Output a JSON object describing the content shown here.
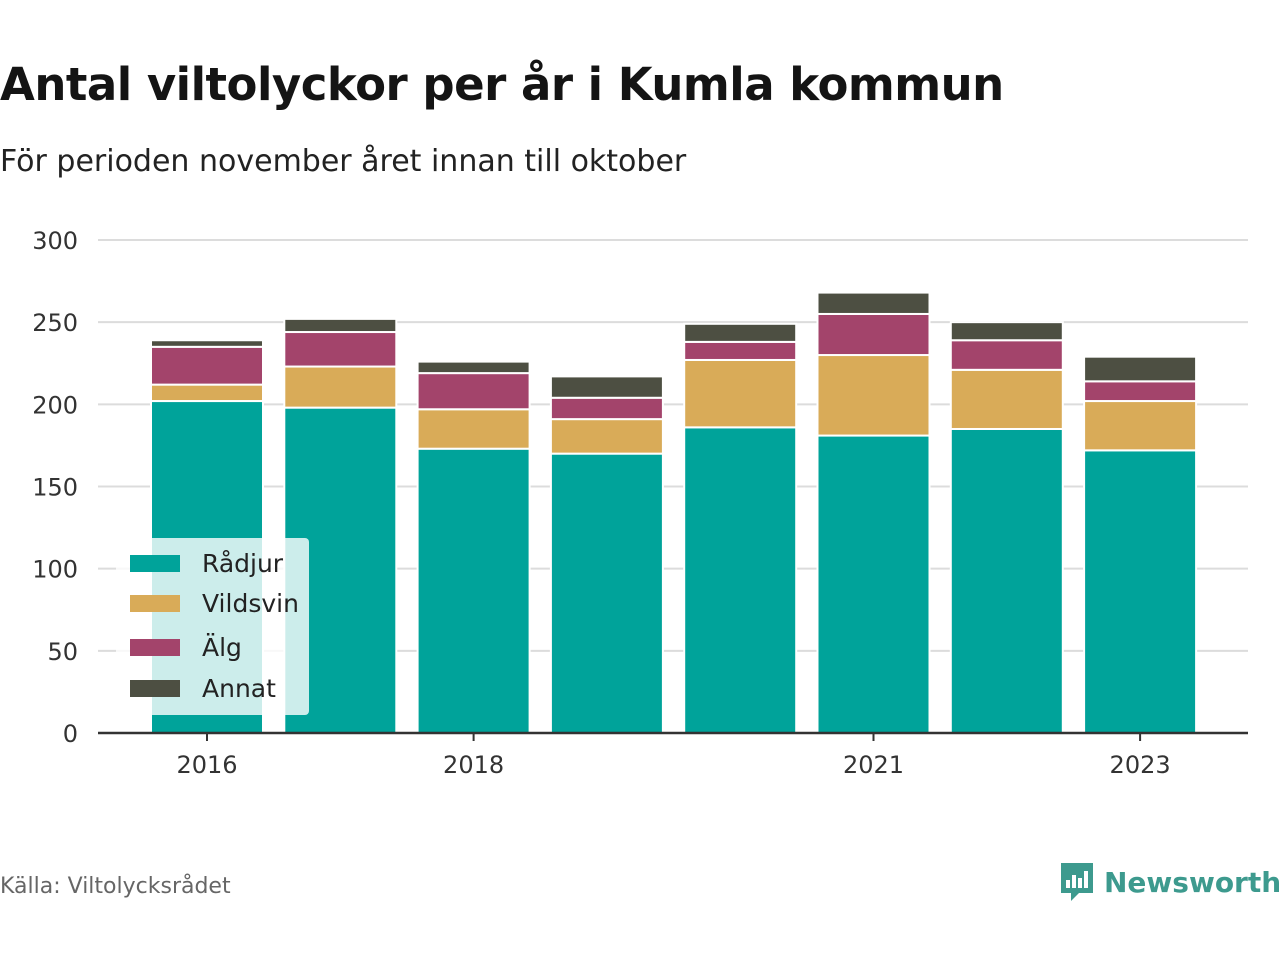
{
  "title": "Antal viltolyckor per år i Kumla kommun",
  "subtitle": "För perioden november året innan till oktober",
  "source": "Källa: Viltolycksrådet",
  "brand": {
    "name": "Newsworthy",
    "icon": "newsworthy-logo-icon",
    "color": "#3d9a8e"
  },
  "chart_data": {
    "type": "bar",
    "stacked": true,
    "categories": [
      "2016",
      "2017",
      "2018",
      "2019",
      "2020",
      "2021",
      "2022",
      "2023"
    ],
    "x_tick_labels": [
      "2016",
      "",
      "2018",
      "",
      "",
      "2021",
      "",
      "2023"
    ],
    "series": [
      {
        "name": "Rådjur",
        "color": "#00a39a",
        "values": [
          202,
          198,
          173,
          170,
          186,
          181,
          185,
          172
        ]
      },
      {
        "name": "Vildsvin",
        "color": "#d9ab58",
        "values": [
          10,
          25,
          24,
          21,
          41,
          49,
          36,
          30
        ]
      },
      {
        "name": "Älg",
        "color": "#a3446b",
        "values": [
          23,
          21,
          22,
          13,
          11,
          25,
          18,
          12
        ]
      },
      {
        "name": "Annat",
        "color": "#4d4f42",
        "values": [
          4,
          8,
          7,
          13,
          11,
          13,
          11,
          15
        ]
      }
    ],
    "ylim": [
      0,
      300
    ],
    "yticks": [
      0,
      50,
      100,
      150,
      200,
      250,
      300
    ],
    "grid": true,
    "legend_position": "bottom-left",
    "xlabel": "",
    "ylabel": ""
  }
}
